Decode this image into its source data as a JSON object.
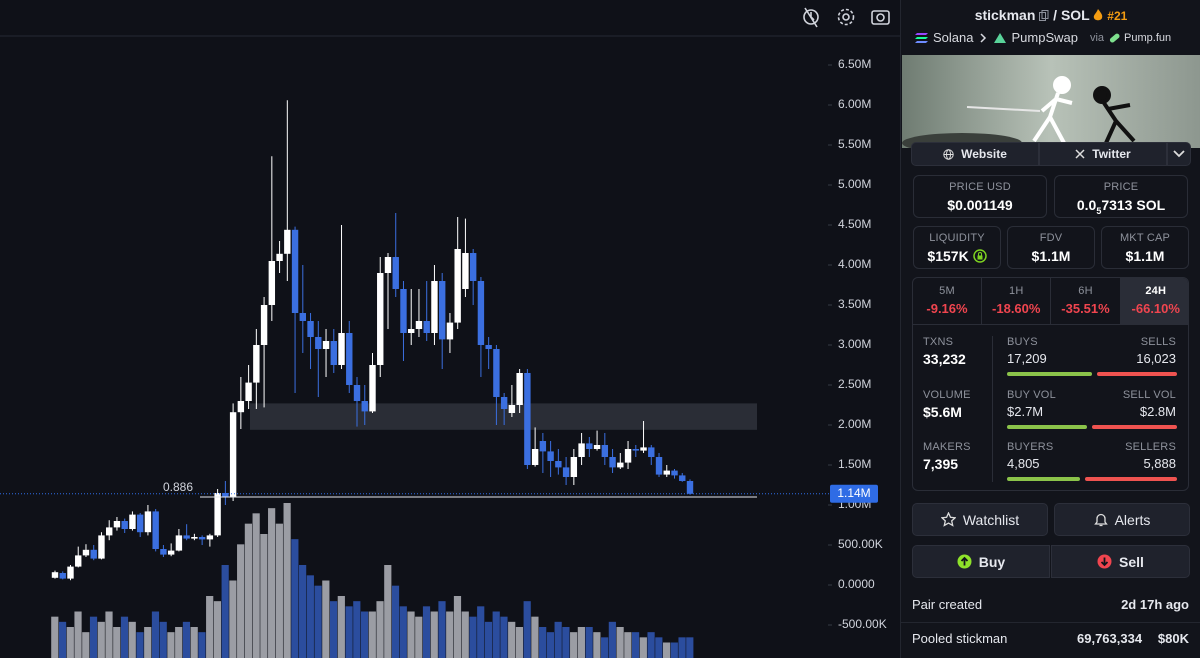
{
  "chart_data": {
    "type": "candlestick",
    "ylim": [
      -900000,
      6850000
    ],
    "yticks": [
      {
        "value": 6500000,
        "label": "6.50M"
      },
      {
        "value": 6000000,
        "label": "6.00M"
      },
      {
        "value": 5500000,
        "label": "5.50M"
      },
      {
        "value": 5000000,
        "label": "5.00M"
      },
      {
        "value": 4500000,
        "label": "4.50M"
      },
      {
        "value": 4000000,
        "label": "4.00M"
      },
      {
        "value": 3500000,
        "label": "3.50M"
      },
      {
        "value": 3000000,
        "label": "3.00M"
      },
      {
        "value": 2500000,
        "label": "2.50M"
      },
      {
        "value": 2000000,
        "label": "2.00M"
      },
      {
        "value": 1500000,
        "label": "1.50M"
      },
      {
        "value": 1000000,
        "label": "1.00M"
      },
      {
        "value": 500000,
        "label": "500.00K"
      },
      {
        "value": 0,
        "label": "0.0000"
      },
      {
        "value": -500000,
        "label": "-500.00K"
      }
    ],
    "grid": false,
    "up_color": "#ffffff",
    "down_color": "#3b6fe0",
    "volume_up_color": "#9b9da4",
    "volume_down_color": "#2b4d9e",
    "candles": [
      [
        90000,
        180000,
        80000,
        160000
      ],
      [
        150000,
        170000,
        70000,
        80000
      ],
      [
        80000,
        250000,
        60000,
        230000
      ],
      [
        230000,
        480000,
        220000,
        370000
      ],
      [
        370000,
        510000,
        350000,
        440000
      ],
      [
        440000,
        500000,
        310000,
        330000
      ],
      [
        330000,
        660000,
        320000,
        620000
      ],
      [
        620000,
        810000,
        560000,
        720000
      ],
      [
        720000,
        850000,
        680000,
        800000
      ],
      [
        800000,
        830000,
        650000,
        700000
      ],
      [
        700000,
        920000,
        680000,
        880000
      ],
      [
        880000,
        900000,
        600000,
        660000
      ],
      [
        660000,
        1000000,
        620000,
        920000
      ],
      [
        920000,
        950000,
        420000,
        450000
      ],
      [
        450000,
        500000,
        350000,
        380000
      ],
      [
        380000,
        520000,
        360000,
        430000
      ],
      [
        430000,
        700000,
        420000,
        620000
      ],
      [
        620000,
        760000,
        560000,
        580000
      ],
      [
        580000,
        640000,
        560000,
        600000
      ],
      [
        600000,
        620000,
        500000,
        570000
      ],
      [
        570000,
        640000,
        480000,
        620000
      ],
      [
        620000,
        1200000,
        600000,
        1150000
      ],
      [
        1150000,
        1300000,
        1000000,
        1100000
      ],
      [
        1100000,
        2270000,
        1050000,
        2160000
      ],
      [
        2160000,
        2600000,
        1950000,
        2300000
      ],
      [
        2300000,
        2750000,
        2200000,
        2530000
      ],
      [
        2530000,
        3200000,
        2200000,
        3000000
      ],
      [
        3000000,
        3600000,
        2220000,
        3500000
      ],
      [
        3500000,
        5360000,
        3300000,
        4050000
      ],
      [
        4050000,
        4300000,
        3900000,
        4140000
      ],
      [
        4140000,
        6060000,
        3800000,
        4440000
      ],
      [
        4440000,
        4480000,
        2400000,
        3400000
      ],
      [
        3400000,
        4000000,
        2900000,
        3300000
      ],
      [
        3300000,
        3400000,
        2700000,
        3100000
      ],
      [
        3100000,
        3300000,
        2350000,
        2950000
      ],
      [
        2950000,
        3200000,
        2600000,
        3050000
      ],
      [
        3050000,
        3200000,
        2650000,
        2750000
      ],
      [
        2750000,
        4500000,
        2700000,
        3150000
      ],
      [
        3150000,
        3300000,
        2400000,
        2500000
      ],
      [
        2500000,
        2600000,
        1980000,
        2300000
      ],
      [
        2300000,
        2500000,
        2000000,
        2170000
      ],
      [
        2170000,
        2900000,
        2150000,
        2750000
      ],
      [
        2750000,
        4100000,
        2600000,
        3900000
      ],
      [
        3900000,
        4150000,
        3200000,
        4100000
      ],
      [
        4100000,
        4650000,
        3600000,
        3700000
      ],
      [
        3700000,
        3800000,
        2800000,
        3150000
      ],
      [
        3150000,
        3700000,
        3000000,
        3200000
      ],
      [
        3200000,
        3700000,
        3100000,
        3300000
      ],
      [
        3300000,
        3800000,
        3050000,
        3150000
      ],
      [
        3150000,
        4000000,
        3000000,
        3800000
      ],
      [
        3800000,
        3900000,
        2700000,
        3070000
      ],
      [
        3070000,
        3400000,
        2900000,
        3280000
      ],
      [
        3280000,
        4600000,
        3200000,
        4200000
      ],
      [
        3700000,
        4580000,
        3600000,
        4150000
      ],
      [
        4150000,
        4200000,
        3500000,
        3800000
      ],
      [
        3800000,
        3850000,
        2600000,
        3000000
      ],
      [
        3000000,
        3100000,
        2700000,
        2950000
      ],
      [
        2950000,
        3000000,
        2000000,
        2350000
      ],
      [
        2350000,
        2400000,
        2000000,
        2200000
      ],
      [
        2150000,
        2500000,
        2100000,
        2250000
      ],
      [
        2250000,
        2700000,
        2150000,
        2650000
      ],
      [
        2650000,
        2700000,
        1450000,
        1500000
      ],
      [
        1500000,
        1970000,
        1480000,
        1700000
      ],
      [
        1800000,
        1900000,
        1400000,
        1670000
      ],
      [
        1670000,
        1800000,
        1350000,
        1550000
      ],
      [
        1550000,
        1700000,
        1380000,
        1470000
      ],
      [
        1470000,
        1600000,
        1250000,
        1350000
      ],
      [
        1350000,
        1700000,
        1250000,
        1600000
      ],
      [
        1600000,
        1900000,
        1500000,
        1770000
      ],
      [
        1770000,
        1850000,
        1600000,
        1700000
      ],
      [
        1700000,
        1930000,
        1680000,
        1750000
      ],
      [
        1750000,
        1900000,
        1500000,
        1600000
      ],
      [
        1600000,
        1700000,
        1400000,
        1470000
      ],
      [
        1470000,
        1650000,
        1450000,
        1530000
      ],
      [
        1530000,
        1800000,
        1450000,
        1700000
      ],
      [
        1700000,
        1750000,
        1600000,
        1680000
      ],
      [
        1680000,
        2050000,
        1650000,
        1720000
      ],
      [
        1720000,
        1750000,
        1500000,
        1600000
      ],
      [
        1600000,
        1650000,
        1350000,
        1380000
      ],
      [
        1380000,
        1500000,
        1350000,
        1430000
      ],
      [
        1430000,
        1450000,
        1330000,
        1370000
      ],
      [
        1370000,
        1400000,
        1290000,
        1300000
      ],
      [
        1300000,
        1320000,
        1130000,
        1140000
      ]
    ],
    "volume": [
      40,
      35,
      30,
      45,
      25,
      40,
      35,
      45,
      30,
      40,
      35,
      25,
      30,
      45,
      35,
      25,
      30,
      35,
      30,
      25,
      60,
      55,
      90,
      75,
      110,
      130,
      140,
      120,
      145,
      130,
      150,
      115,
      90,
      80,
      70,
      75,
      55,
      60,
      50,
      55,
      45,
      45,
      55,
      90,
      70,
      50,
      45,
      40,
      50,
      45,
      55,
      45,
      60,
      45,
      40,
      50,
      35,
      45,
      40,
      35,
      30,
      55,
      40,
      30,
      25,
      35,
      30,
      25,
      30,
      30,
      25,
      20,
      35,
      30,
      25,
      25,
      20,
      25,
      20,
      15,
      15,
      20,
      20
    ],
    "zone": [
      1940000,
      2270000
    ],
    "level": {
      "value": 1100000,
      "label": "0.886"
    },
    "price_line": {
      "value": 1140000,
      "label": "1.14M"
    }
  },
  "panel": {
    "token": "stickman",
    "quote": "/ SOL",
    "rank": "#21",
    "chain": "Solana",
    "dex": "PumpSwap",
    "via": "via",
    "launchpad": "Pump.fun",
    "links": [
      "Website",
      "Twitter"
    ],
    "price_usd": {
      "label": "PRICE USD",
      "value": "$0.001149"
    },
    "price_sol": {
      "label": "PRICE",
      "prefix": "0.0",
      "zeros": "5",
      "digits": "7313 SOL"
    },
    "stats": [
      {
        "label": "LIQUIDITY",
        "value": "$157K"
      },
      {
        "label": "FDV",
        "value": "$1.1M"
      },
      {
        "label": "MKT CAP",
        "value": "$1.1M"
      }
    ],
    "timeframes": [
      {
        "label": "5M",
        "change": "-9.16%"
      },
      {
        "label": "1H",
        "change": "-18.60%"
      },
      {
        "label": "6H",
        "change": "-35.51%"
      },
      {
        "label": "24H",
        "change": "-66.10%"
      }
    ],
    "metrics": [
      {
        "label": "TXNS",
        "value": "33,232",
        "left_label": "BUYS",
        "left": "17,209",
        "right_label": "SELLS",
        "right": "16,023"
      },
      {
        "label": "VOLUME",
        "value": "$5.6M",
        "left_label": "BUY VOL",
        "left": "$2.7M",
        "right_label": "SELL VOL",
        "right": "$2.8M"
      },
      {
        "label": "MAKERS",
        "value": "7,395",
        "left_label": "BUYERS",
        "left": "4,805",
        "right_label": "SELLERS",
        "right": "5,888"
      }
    ],
    "buttons": [
      "Watchlist",
      "Alerts",
      "Buy",
      "Sell"
    ],
    "pair_created": {
      "label": "Pair created",
      "value": "2d 17h ago"
    },
    "pooled": {
      "label": "Pooled stickman",
      "amount": "69,763,334",
      "usd": "$80K"
    }
  }
}
